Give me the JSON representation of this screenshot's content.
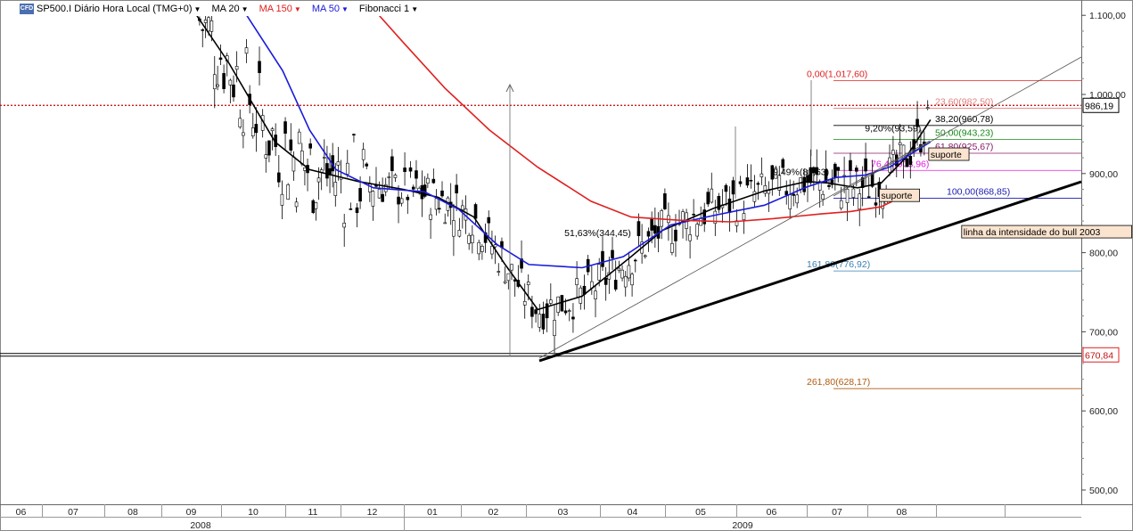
{
  "toolbar": {
    "logo_text": "CFD",
    "symbol": "SP500.I Diário Hora Local (TMG+0)",
    "ma20": "MA 20",
    "ma150": "MA 150",
    "ma50": "MA 50",
    "fib": "Fibonacci 1"
  },
  "chart_data": {
    "type": "line",
    "title": "SP500.I Diário Hora Local (TMG+0)",
    "ylim": [
      478,
      1113
    ],
    "y_ticks": [
      500,
      600,
      700,
      800,
      900,
      1000,
      1100
    ],
    "y_tick_labels": [
      "500,00",
      "600,00",
      "700,00",
      "800,00",
      "900,00",
      "1.000,00",
      "1.100,00"
    ],
    "x_month_labels": [
      "06",
      "07",
      "08",
      "09",
      "10",
      "11",
      "12",
      "01",
      "02",
      "03",
      "04",
      "05",
      "06",
      "07",
      "08"
    ],
    "x_year_labels": [
      "2008",
      "2009"
    ],
    "current_price_label": "986,19",
    "current_price": 986.19,
    "support_price_label": "670,84",
    "support_price": 670.84,
    "series": [
      {
        "name": "MA 20",
        "color": "#000000",
        "points": [
          [
            2008.71,
            1108
          ],
          [
            2008.76,
            1040
          ],
          [
            2008.82,
            940
          ],
          [
            2008.87,
            905
          ],
          [
            2008.94,
            890
          ],
          [
            2009.0,
            880
          ],
          [
            2009.05,
            870
          ],
          [
            2009.1,
            845
          ],
          [
            2009.14,
            785
          ],
          [
            2009.18,
            728
          ],
          [
            2009.23,
            745
          ],
          [
            2009.29,
            795
          ],
          [
            2009.33,
            828
          ],
          [
            2009.39,
            856
          ],
          [
            2009.45,
            878
          ],
          [
            2009.5,
            890
          ],
          [
            2009.53,
            888
          ],
          [
            2009.57,
            882
          ],
          [
            2009.6,
            888
          ],
          [
            2009.63,
            920
          ],
          [
            2009.66,
            968
          ]
        ]
      },
      {
        "name": "MA 50",
        "color": "#1a1adc",
        "points": [
          [
            2008.78,
            1105
          ],
          [
            2008.83,
            1030
          ],
          [
            2008.87,
            955
          ],
          [
            2008.91,
            905
          ],
          [
            2008.96,
            882
          ],
          [
            2009.03,
            877
          ],
          [
            2009.08,
            855
          ],
          [
            2009.13,
            810
          ],
          [
            2009.17,
            785
          ],
          [
            2009.23,
            781
          ],
          [
            2009.28,
            795
          ],
          [
            2009.34,
            835
          ],
          [
            2009.39,
            847
          ],
          [
            2009.45,
            860
          ],
          [
            2009.5,
            883
          ],
          [
            2009.54,
            895
          ],
          [
            2009.58,
            898
          ],
          [
            2009.61,
            908
          ],
          [
            2009.66,
            940
          ]
        ]
      },
      {
        "name": "MA 150",
        "color": "#e02020",
        "points": [
          [
            2008.96,
            1108
          ],
          [
            2009.0,
            1065
          ],
          [
            2009.06,
            1008
          ],
          [
            2009.12,
            955
          ],
          [
            2009.18,
            908
          ],
          [
            2009.24,
            865
          ],
          [
            2009.29,
            845
          ],
          [
            2009.35,
            841
          ],
          [
            2009.41,
            839
          ],
          [
            2009.46,
            843
          ],
          [
            2009.52,
            849
          ],
          [
            2009.56,
            852
          ],
          [
            2009.6,
            858
          ],
          [
            2009.62,
            868
          ]
        ]
      }
    ],
    "fibonacci": {
      "color_legend": "Fibonacci 1",
      "levels": [
        {
          "label": "0,00(1,017,60)",
          "value": 1017.6,
          "color": "#e02020"
        },
        {
          "label": "23,60(982,50)",
          "value": 982.5,
          "color": "#e08080"
        },
        {
          "label": "38,20(960,78)",
          "value": 960.78,
          "color": "#000000"
        },
        {
          "label": "50,00(943,23)",
          "value": 943.23,
          "color": "#1a8a1a"
        },
        {
          "label": "61,80(925,67)",
          "value": 925.67,
          "color": "#8a1a6a"
        },
        {
          "label": "76,40(903,96)",
          "value": 903.96,
          "color": "#e020e0"
        },
        {
          "label": "100,00(868,85)",
          "value": 868.85,
          "color": "#1a1ab0"
        },
        {
          "label": "161,80(776,92)",
          "value": 776.92,
          "color": "#3a80b0"
        },
        {
          "label": "261,80(628,17)",
          "value": 628.17,
          "color": "#b05a10"
        }
      ]
    },
    "annotations": [
      {
        "text": "51,63%(344,45)",
        "x": 2009.21,
        "y": 821
      },
      {
        "text": "9,49%(81,63)",
        "x": 2009.46,
        "y": 898
      },
      {
        "text": "9,20%(93,59)",
        "x": 2009.58,
        "y": 953
      },
      {
        "text": "suporte",
        "x": 2009.6,
        "y": 868
      },
      {
        "text": "suporte",
        "x": 2009.66,
        "y": 920
      },
      {
        "text": "linha da intensidade do bull 2003",
        "x": 2009.7,
        "y": 822
      }
    ]
  }
}
